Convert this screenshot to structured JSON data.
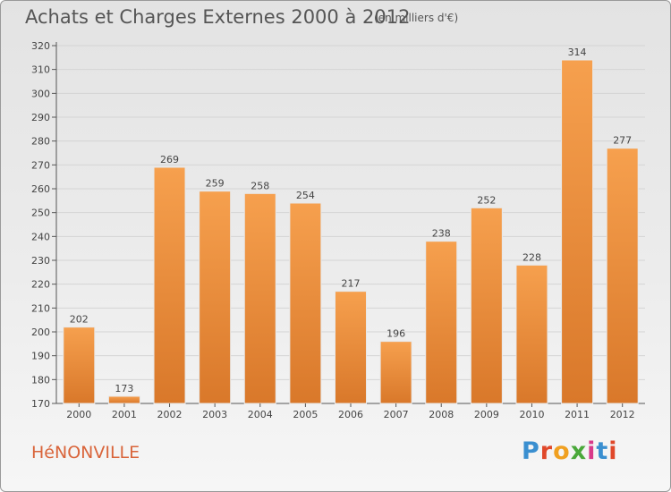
{
  "header": {
    "title": "Achats et Charges Externes 2000 à 2012",
    "unit_note": "(en milliers d'€)"
  },
  "footer": {
    "town": "HéNONVILLE",
    "brand": "Proxiti",
    "brand_colors": [
      "#3a8fd0",
      "#e0482a",
      "#f0a020",
      "#4aa83a",
      "#d83a8a",
      "#3a8fd0",
      "#e0482a"
    ]
  },
  "colors": {
    "bar_light": "#f6a04e",
    "bar_dark": "#d9782a",
    "axis": "#555555",
    "grid": "#d4d4d4"
  },
  "chart_data": {
    "type": "bar",
    "title": "Achats et Charges Externes 2000 à 2012",
    "subtitle": "(en milliers d'€)",
    "categories": [
      "2000",
      "2001",
      "2002",
      "2003",
      "2004",
      "2005",
      "2006",
      "2007",
      "2008",
      "2009",
      "2010",
      "2011",
      "2012"
    ],
    "values": [
      202,
      173,
      269,
      259,
      258,
      254,
      217,
      196,
      238,
      252,
      228,
      314,
      277
    ],
    "ylim": [
      170,
      320
    ],
    "yticks": [
      170,
      180,
      190,
      200,
      210,
      220,
      230,
      240,
      250,
      260,
      270,
      280,
      290,
      300,
      310,
      320
    ],
    "grid": true,
    "data_labels": true
  }
}
